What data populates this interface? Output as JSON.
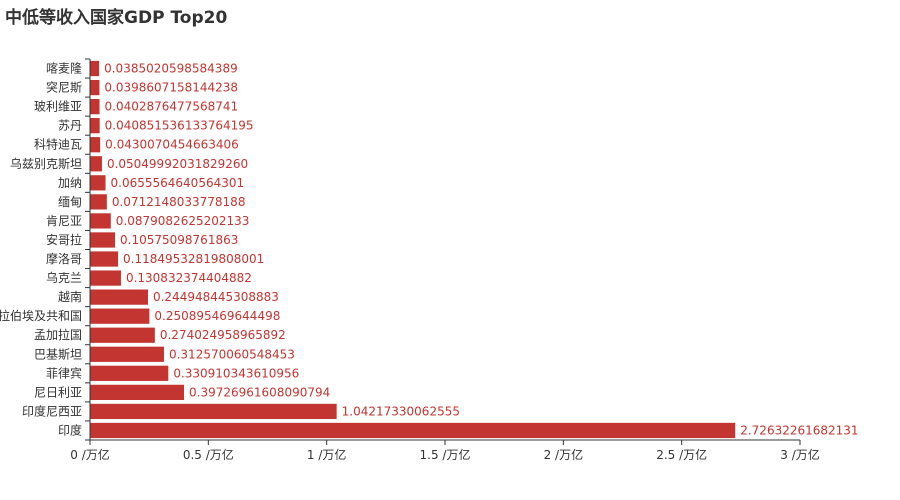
{
  "chart_data": {
    "type": "bar",
    "orientation": "horizontal",
    "title": "中低等收入国家GDP Top20",
    "bar_color": "#c23531",
    "label_color": "#c23531",
    "axis_color": "#333333",
    "categories": [
      "印度",
      "印度尼西亚",
      "尼日利亚",
      "菲律宾",
      "巴基斯坦",
      "孟加拉国",
      "阿拉伯埃及共和国",
      "越南",
      "乌克兰",
      "摩洛哥",
      "安哥拉",
      "肯尼亚",
      "缅甸",
      "加纳",
      "乌兹别克斯坦",
      "科特迪瓦",
      "苏丹",
      "玻利维亚",
      "突尼斯",
      "喀麦隆"
    ],
    "values": [
      2.72632261682131,
      1.04217330062555,
      0.39726961608090794,
      0.330910343610956,
      0.312570060548453,
      0.274024958965892,
      0.250895469644498,
      0.244948445308883,
      0.130832374404882,
      0.11849532819808001,
      0.10575098761863,
      0.0879082625202133,
      0.0712148033778188,
      0.0655564640564301,
      0.0504999203182926,
      0.0430070454663406,
      0.040851536133764195,
      0.0402876477568741,
      0.0398607158144238,
      0.0385020598584389
    ],
    "value_labels": [
      "2.72632261682131",
      "1.04217330062555",
      "0.39726961608090794",
      "0.330910343610956",
      "0.312570060548453",
      "0.274024958965892",
      "0.250895469644498",
      "0.244948445308883",
      "0.130832374404882",
      "0.11849532819808001",
      "0.10575098761863",
      "0.0879082625202133",
      "0.0712148033778188",
      "0.0655564640564301",
      "0.05049992031829260",
      "0.0430070454663406",
      "0.040851536133764195",
      "0.0402876477568741",
      "0.0398607158144238",
      "0.0385020598584389"
    ],
    "x_ticks": [
      {
        "value": 0,
        "label": "0 /万亿"
      },
      {
        "value": 0.5,
        "label": "0.5 /万亿"
      },
      {
        "value": 1,
        "label": "1 /万亿"
      },
      {
        "value": 1.5,
        "label": "1.5 /万亿"
      },
      {
        "value": 2,
        "label": "2 /万亿"
      },
      {
        "value": 2.5,
        "label": "2.5 /万亿"
      },
      {
        "value": 3,
        "label": "3 /万亿"
      }
    ],
    "xlim": [
      0,
      3
    ],
    "grid": false,
    "legend": "none"
  }
}
